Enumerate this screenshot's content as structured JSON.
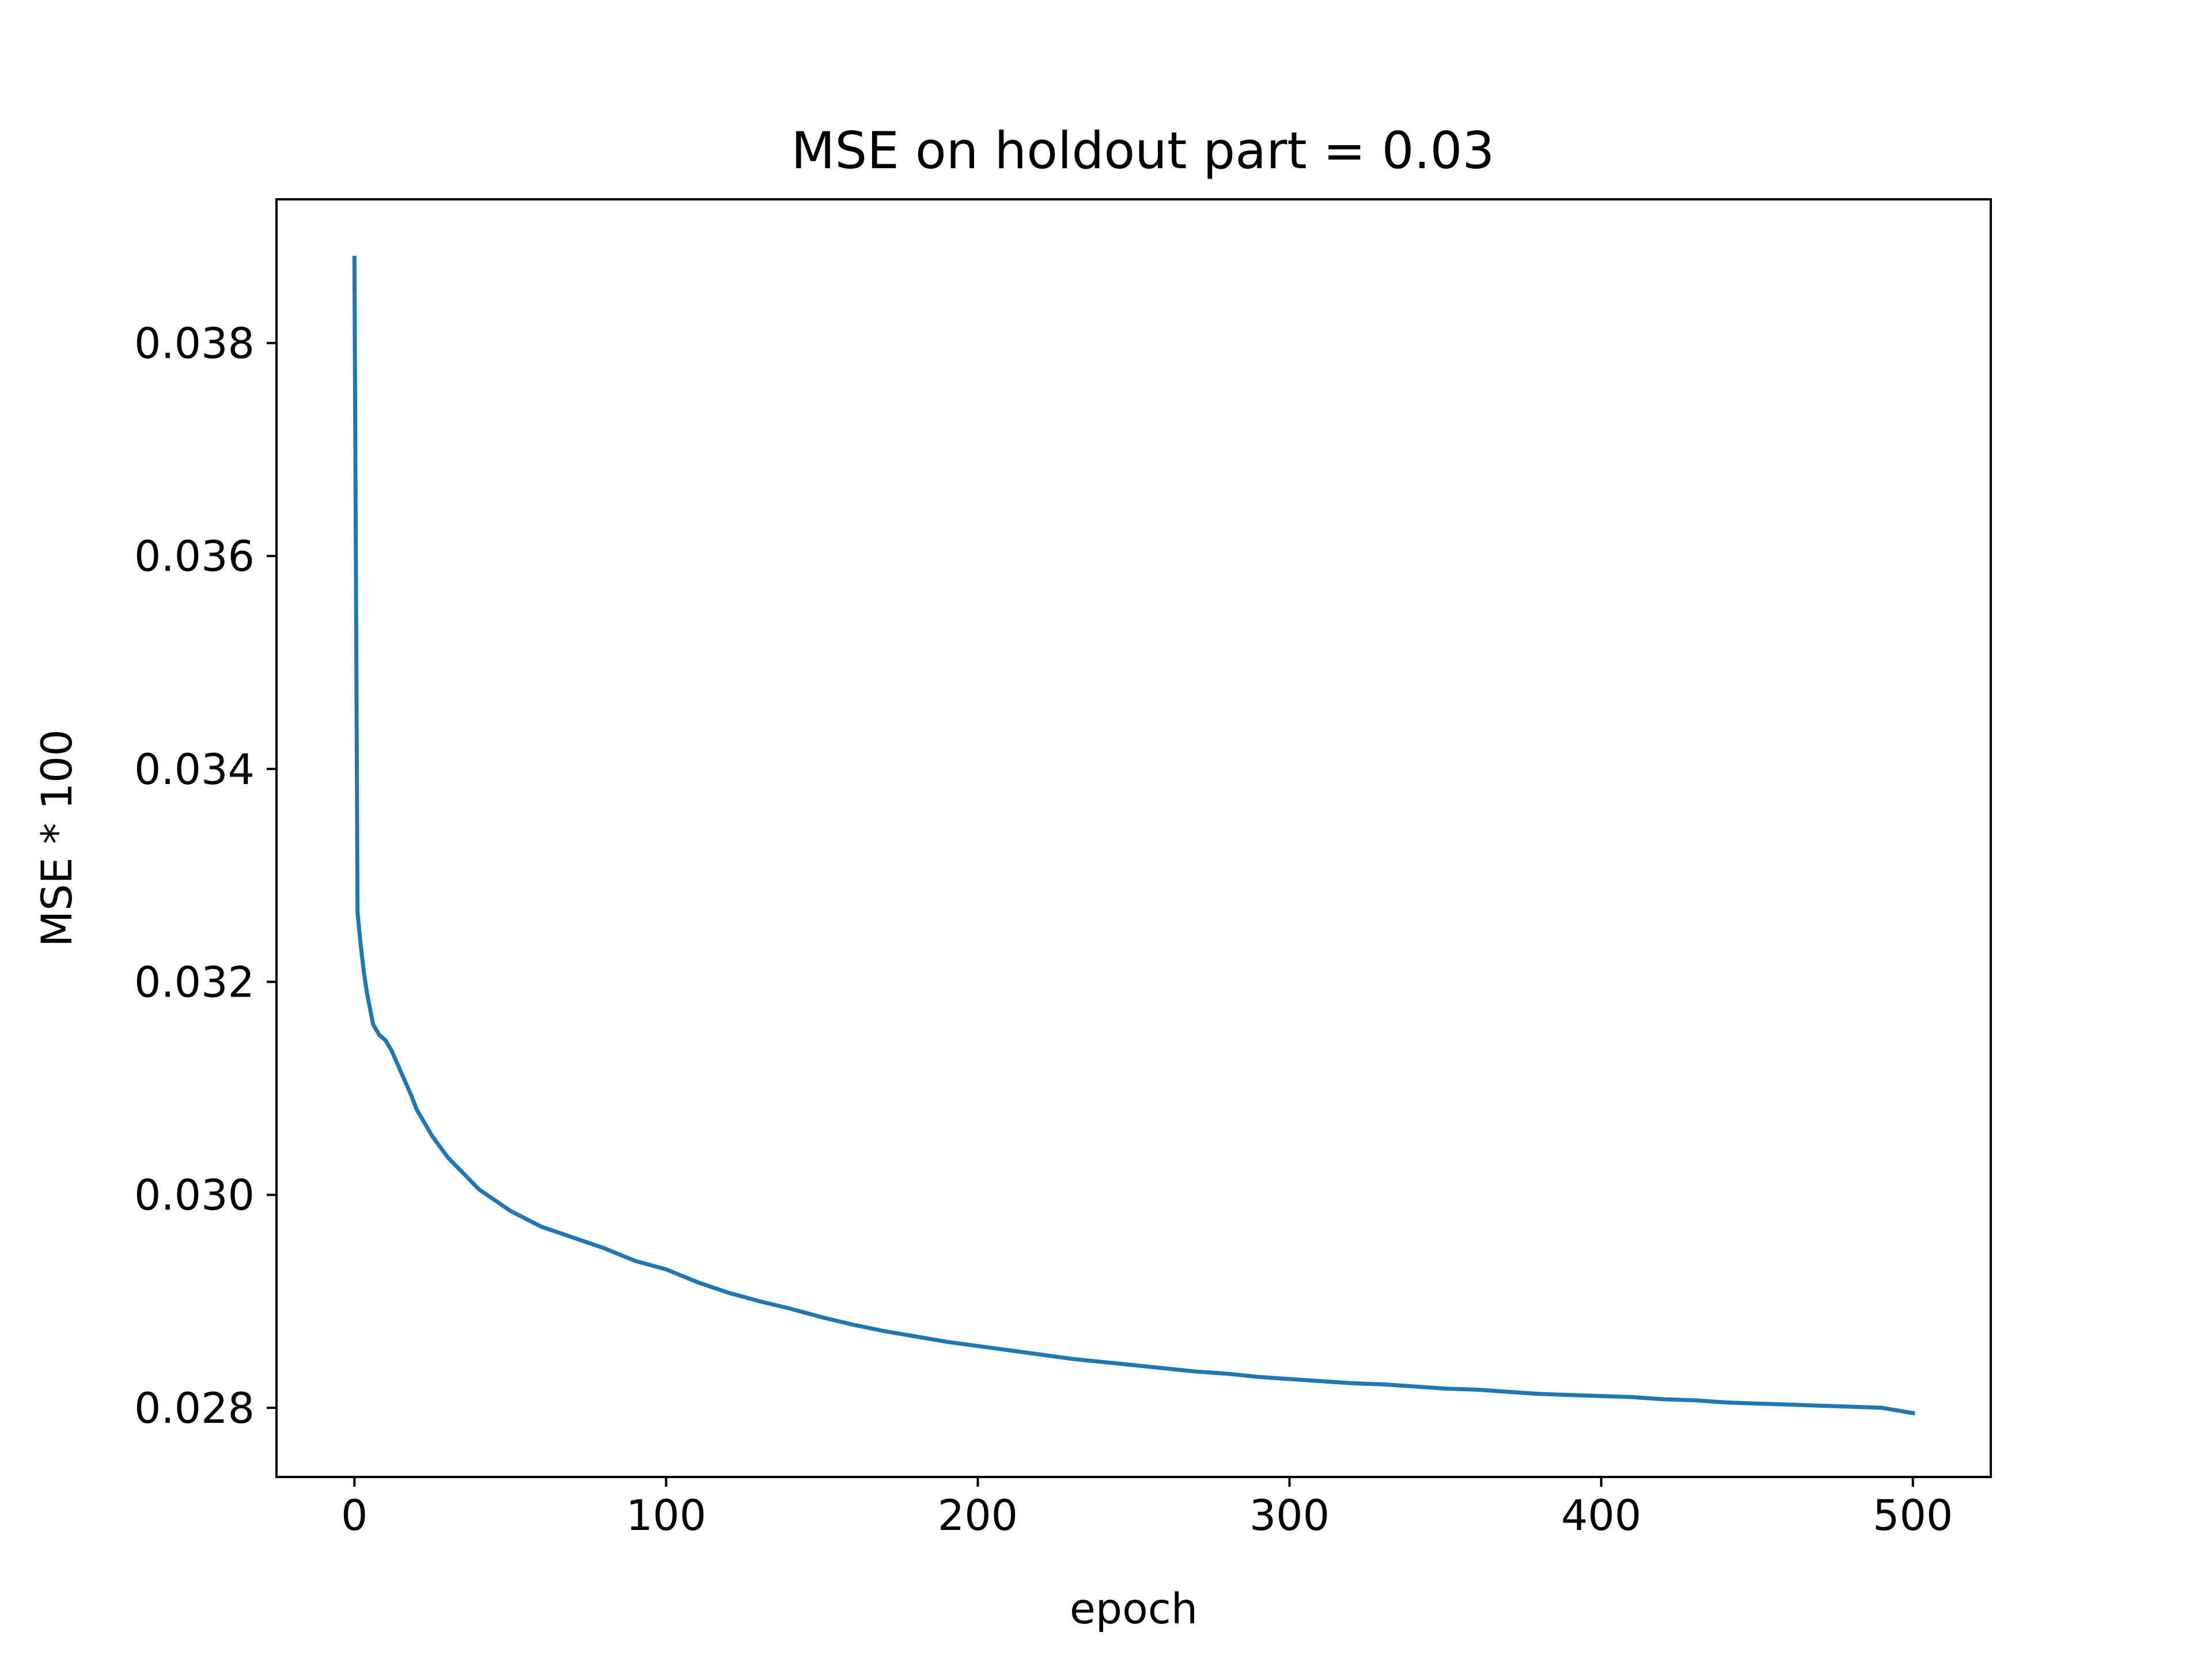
{
  "chart_data": {
    "type": "line",
    "title": "MSE on holdout part = 0.03",
    "xlabel": "epoch",
    "ylabel": "MSE * 100",
    "xlim": [
      -25,
      525
    ],
    "ylim": [
      0.02735,
      0.03935
    ],
    "xticks": [
      0,
      100,
      200,
      300,
      400,
      500
    ],
    "xtick_labels": [
      "0",
      "100",
      "200",
      "300",
      "400",
      "500"
    ],
    "yticks": [
      0.028,
      0.03,
      0.032,
      0.034,
      0.036,
      0.038
    ],
    "ytick_labels": [
      "0.028",
      "0.030",
      "0.032",
      "0.034",
      "0.036",
      "0.038"
    ],
    "grid": false,
    "legend": "none",
    "series": [
      {
        "color": "#1f77b4",
        "x": [
          0,
          1,
          2,
          3,
          4,
          5,
          6,
          8,
          10,
          12,
          15,
          18,
          20,
          25,
          30,
          35,
          40,
          45,
          50,
          60,
          70,
          80,
          90,
          100,
          110,
          120,
          130,
          140,
          150,
          160,
          170,
          180,
          190,
          200,
          210,
          220,
          230,
          240,
          250,
          260,
          270,
          280,
          290,
          300,
          310,
          320,
          330,
          340,
          350,
          360,
          370,
          380,
          390,
          400,
          410,
          420,
          430,
          440,
          450,
          460,
          470,
          480,
          490,
          500
        ],
        "y": [
          0.0388,
          0.03265,
          0.03235,
          0.0321,
          0.0319,
          0.03175,
          0.0316,
          0.0315,
          0.03145,
          0.03135,
          0.03115,
          0.03095,
          0.0308,
          0.03055,
          0.03035,
          0.0302,
          0.03005,
          0.02995,
          0.02985,
          0.0297,
          0.0296,
          0.0295,
          0.02938,
          0.0293,
          0.02918,
          0.02908,
          0.029,
          0.02893,
          0.02885,
          0.02878,
          0.02872,
          0.02867,
          0.02862,
          0.02858,
          0.02854,
          0.0285,
          0.02846,
          0.02843,
          0.0284,
          0.02837,
          0.02834,
          0.02832,
          0.02829,
          0.02827,
          0.02825,
          0.02823,
          0.02822,
          0.0282,
          0.02818,
          0.02817,
          0.02815,
          0.02813,
          0.02812,
          0.02811,
          0.0281,
          0.02808,
          0.02807,
          0.02805,
          0.02804,
          0.02803,
          0.02802,
          0.02801,
          0.028,
          0.02795
        ]
      }
    ]
  }
}
